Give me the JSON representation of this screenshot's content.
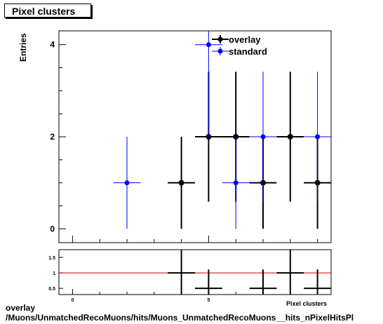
{
  "title": "Pixel clusters",
  "ylabel": "Entries",
  "xlabel_cut": "Pixel clusters",
  "footer": {
    "line1": "overlay",
    "line2": "/Muons/UnmatchedRecoMuons/hits/Muons_UnmatchedRecoMuons__hits_nPixelHitsPl"
  },
  "colors": {
    "overlay": "#000000",
    "standard": "#0000ff",
    "ratio_line": "#cc0000"
  },
  "chart_data": [
    {
      "type": "scatter",
      "title": "Pixel clusters",
      "ylabel": "Entries",
      "xlim": [
        -0.5,
        9.5
      ],
      "ylim": [
        -0.3,
        4.3
      ],
      "x_ticks": [
        0,
        5
      ],
      "y_ticks": [
        0,
        2,
        4
      ],
      "legend": {
        "placement": "top-right",
        "entries": [
          "overlay",
          "standard"
        ]
      },
      "series": [
        {
          "name": "overlay",
          "x": [
            4,
            5,
            6,
            7,
            8,
            9
          ],
          "y": [
            1,
            2,
            2,
            1,
            2,
            1
          ],
          "yerr_low": [
            1,
            1.41,
            1.41,
            1,
            1.41,
            1
          ],
          "yerr_high": [
            1,
            1.41,
            1.41,
            1,
            1.41,
            1
          ],
          "xerr": 0.5
        },
        {
          "name": "standard",
          "x": [
            2,
            5,
            6,
            7,
            9
          ],
          "y": [
            1,
            4,
            1,
            2,
            2
          ],
          "yerr_low": [
            1,
            2,
            1,
            1.41,
            1.41
          ],
          "yerr_high": [
            1,
            2,
            1,
            1.41,
            1.41
          ],
          "xerr": 0.5
        }
      ]
    },
    {
      "type": "scatter",
      "xlim": [
        -0.5,
        9.5
      ],
      "ylim": [
        0.3,
        1.75
      ],
      "x_ticks": [
        0,
        5
      ],
      "y_ticks": [
        0.5,
        1,
        1.5
      ],
      "reference_line": 1,
      "series": [
        {
          "name": "ratio",
          "x": [
            4,
            5,
            7,
            8,
            9
          ],
          "y": [
            1,
            0.5,
            0.5,
            1,
            0.5
          ],
          "yerr_low": [
            1,
            0.61,
            0.61,
            1,
            0.61
          ],
          "yerr_high": [
            1,
            0.61,
            0.61,
            1,
            0.61
          ],
          "xerr": 0.5
        }
      ]
    }
  ]
}
